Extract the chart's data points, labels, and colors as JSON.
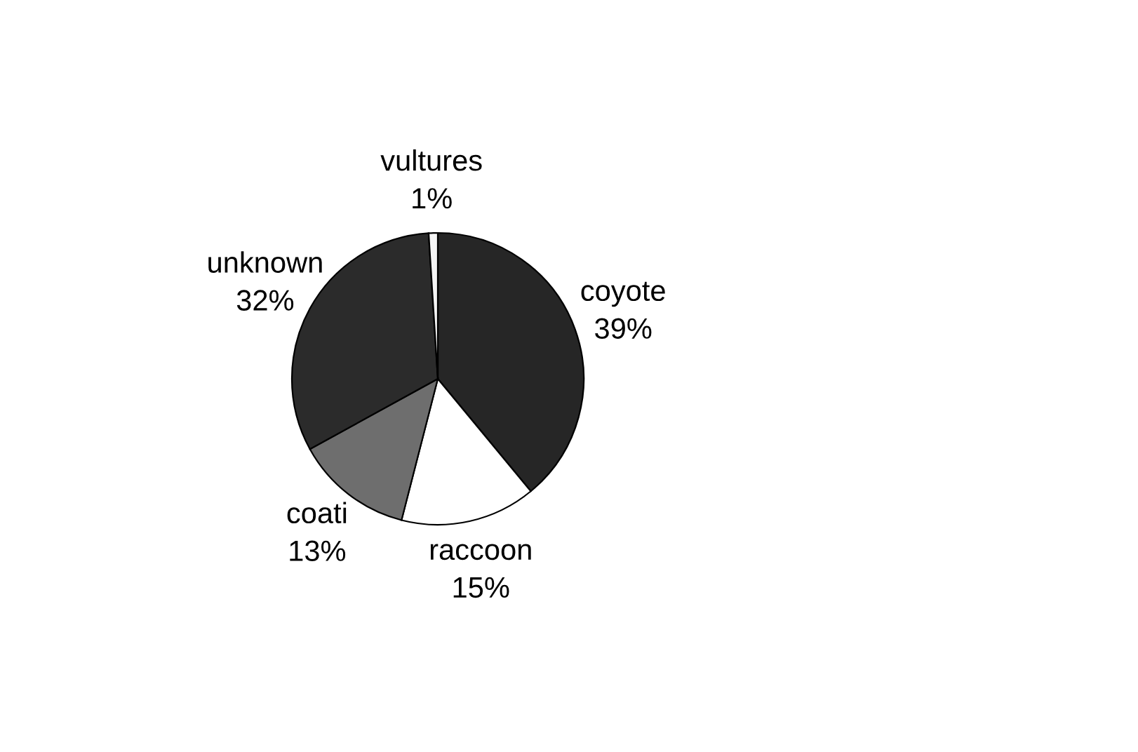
{
  "chart_data": {
    "type": "pie",
    "categories": [
      "coyote",
      "raccoon",
      "coati",
      "unknown",
      "vultures"
    ],
    "values": [
      39,
      15,
      13,
      32,
      1
    ],
    "value_labels": [
      "39%",
      "15%",
      "13%",
      "32%",
      "1%"
    ],
    "colors": [
      "#262626",
      "#ffffff",
      "#6e6e6e",
      "#2b2b2b",
      "#f4f4f4"
    ]
  }
}
